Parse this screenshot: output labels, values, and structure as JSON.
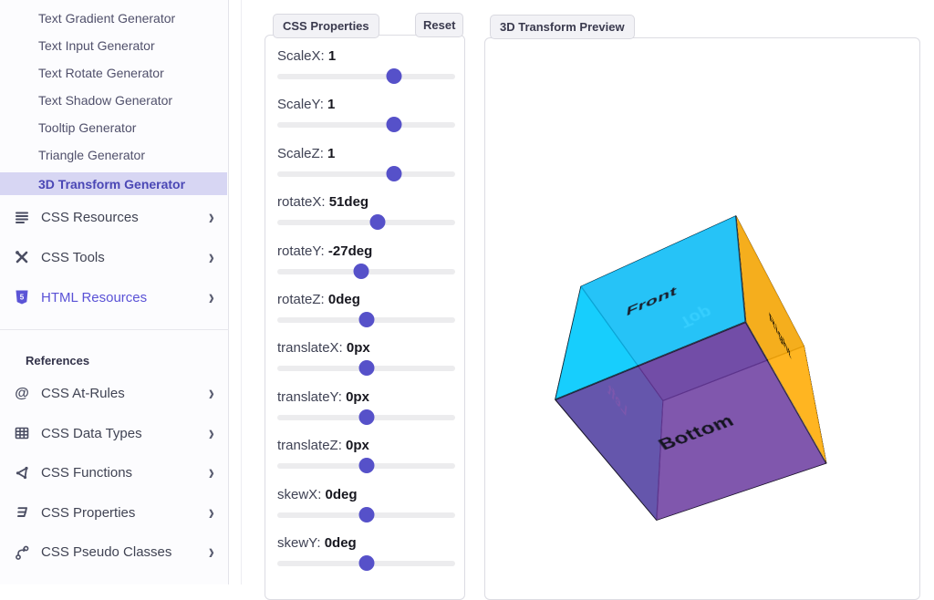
{
  "colors": {
    "accent": "#5a52d6",
    "active_item_bg": "#d7d6f3",
    "active_item_text": "#4a47b5",
    "slider_thumb": "#5651c9"
  },
  "sidebar": {
    "generators": [
      {
        "label": "Text Gradient Generator",
        "active": false
      },
      {
        "label": "Text Input Generator",
        "active": false
      },
      {
        "label": "Text Rotate Generator",
        "active": false
      },
      {
        "label": "Text Shadow Generator",
        "active": false
      },
      {
        "label": "Tooltip Generator",
        "active": false
      },
      {
        "label": "Triangle Generator",
        "active": false
      },
      {
        "label": "3D Transform Generator",
        "active": true
      }
    ],
    "sections": [
      {
        "icon": "lines-icon",
        "label": "CSS Resources",
        "accent": false
      },
      {
        "icon": "tools-icon",
        "label": "CSS Tools",
        "accent": false
      },
      {
        "icon": "html5-icon",
        "label": "HTML Resources",
        "accent": true
      }
    ],
    "references_heading": "References",
    "references": [
      {
        "icon": "at-icon",
        "label": "CSS At-Rules"
      },
      {
        "icon": "table-icon",
        "label": "CSS Data Types"
      },
      {
        "icon": "functions-icon",
        "label": "CSS Functions"
      },
      {
        "icon": "css-shield-icon",
        "label": "CSS Properties"
      },
      {
        "icon": "branch-icon",
        "label": "CSS Pseudo Classes"
      }
    ],
    "chevron": "›"
  },
  "properties_panel": {
    "title": "CSS Properties",
    "reset_label": "Reset",
    "sliders": [
      {
        "name": "ScaleX",
        "value": "1",
        "percent": 65.5
      },
      {
        "name": "ScaleY",
        "value": "1",
        "percent": 65.5
      },
      {
        "name": "ScaleZ",
        "value": "1",
        "percent": 65.5
      },
      {
        "name": "rotateX",
        "value": "51deg",
        "percent": 56.5
      },
      {
        "name": "rotateY",
        "value": "-27deg",
        "percent": 47
      },
      {
        "name": "rotateZ",
        "value": "0deg",
        "percent": 50
      },
      {
        "name": "translateX",
        "value": "0px",
        "percent": 50
      },
      {
        "name": "translateY",
        "value": "0px",
        "percent": 50
      },
      {
        "name": "translateZ",
        "value": "0px",
        "percent": 50
      },
      {
        "name": "skewX",
        "value": "0deg",
        "percent": 50
      },
      {
        "name": "skewY",
        "value": "0deg",
        "percent": 50
      }
    ]
  },
  "preview_panel": {
    "title": "3D Transform Preview",
    "cube_transform": "rotateX(51deg) rotateY(-27deg)",
    "faces": [
      {
        "id": "front",
        "label": "Front",
        "color": "rgba(0,195,255,0.78)",
        "text_color": "#1a1a26"
      },
      {
        "id": "back",
        "label": "Back",
        "color": "rgba(250,250,255,0.16)",
        "text_color": "rgba(255,255,255,0.85)"
      },
      {
        "id": "top",
        "label": "Top",
        "color": "rgba(40,100,160,0.38)",
        "text_color": "rgba(255,255,255,0.85)"
      },
      {
        "id": "bottom",
        "label": "Bottom",
        "color": "rgba(100,50,155,0.82)",
        "text_color": "#141420"
      },
      {
        "id": "left",
        "label": "Left",
        "color": "rgba(0,240,240,0.60)",
        "text_color": "rgba(255,255,255,0.85)"
      },
      {
        "id": "right",
        "label": "Right",
        "color": "rgba(255,170,0,0.87)",
        "text_color": "#231803"
      }
    ]
  }
}
